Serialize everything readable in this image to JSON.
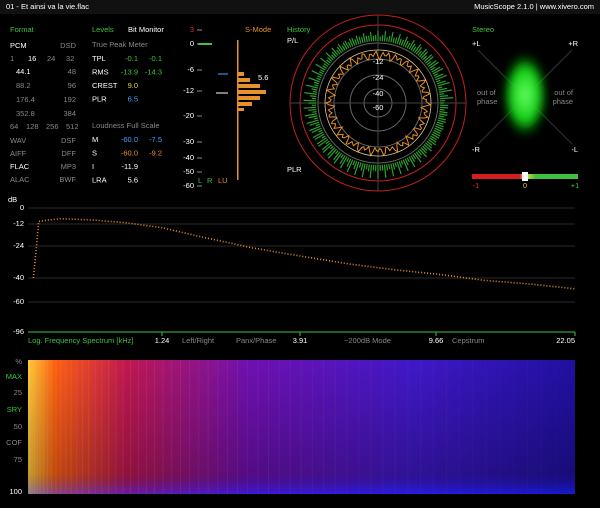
{
  "title_bar": {
    "file": "01 - Et ainsi va la vie.flac",
    "app": "MusicScope 2.1.0 | www.xivero.com"
  },
  "format": {
    "title": "Format",
    "headers": [
      "PCM",
      "DSD"
    ],
    "bits": [
      "1",
      "16",
      "24",
      "32"
    ],
    "rates": [
      [
        "44.1",
        "48"
      ],
      [
        "88.2",
        "96"
      ],
      [
        "176.4",
        "192"
      ],
      [
        "352.8",
        "384"
      ]
    ],
    "dsd": [
      "64",
      "128",
      "256",
      "512"
    ],
    "files": [
      [
        "WAV",
        "DSF"
      ],
      [
        "AIFF",
        "DFF"
      ],
      [
        "FLAC",
        "MP3"
      ],
      [
        "ALAC",
        "BWF"
      ]
    ]
  },
  "levels": {
    "title": "Levels",
    "mode": "Bit Monitor",
    "true_peak": "True Peak Meter",
    "rows": [
      [
        "TPL",
        "-0.1",
        "-0.1"
      ],
      [
        "RMS",
        "-13.9",
        "-14.3"
      ],
      [
        "CREST",
        "9.0"
      ],
      [
        "PLR",
        "6.5"
      ]
    ],
    "loudness": "Loudness Full Scale",
    "loud_rows": [
      [
        "M",
        "-60.0",
        "-7.5"
      ],
      [
        "S",
        "-60.0",
        "-9.2"
      ],
      [
        "I",
        "-11.9"
      ],
      [
        "LRA",
        "5.6"
      ]
    ]
  },
  "smode": {
    "label": "S-Mode",
    "ticks": [
      "3",
      "0",
      "-6",
      "-12",
      "-20",
      "-30",
      "-40",
      "-50",
      "-60"
    ],
    "peak": "5.6",
    "channels": [
      "L",
      "R",
      "LU"
    ]
  },
  "history": {
    "title": "History",
    "pl": "P/L",
    "plr": "PLR",
    "rings": [
      "-12",
      "-24",
      "-40",
      "-60"
    ]
  },
  "stereo": {
    "title": "Stereo",
    "corners": [
      "+L",
      "+R",
      "-R",
      "-L"
    ],
    "out_of_phase": [
      "out of",
      "phase"
    ],
    "scale": [
      "-1",
      "0",
      "+1"
    ]
  },
  "spectrum": {
    "unit": "dB",
    "yticks": [
      0,
      -12,
      -24,
      -40,
      -60,
      -96
    ],
    "xticks": [
      1.24,
      3.91,
      9.66,
      22.05
    ],
    "labels": [
      "Log. Frequency Spectrum [kHz]",
      "Left/Right",
      "Panx/Phase",
      "~200dB Mode",
      "Cepstrum"
    ],
    "khz": [
      0.05,
      0.1,
      0.3,
      0.6,
      0.9,
      1.24,
      2,
      3,
      3.91,
      6,
      8,
      9.66,
      14,
      18,
      22.05
    ],
    "db": [
      -40,
      -10,
      -8,
      -9,
      -11,
      -14,
      -19,
      -25,
      -29,
      -33,
      -36,
      -38,
      -42,
      -45,
      -49
    ]
  },
  "spectrogram": {
    "labels": [
      "%",
      "MAX",
      "25",
      "SRY",
      "50",
      "COF",
      "75",
      "100"
    ]
  }
}
